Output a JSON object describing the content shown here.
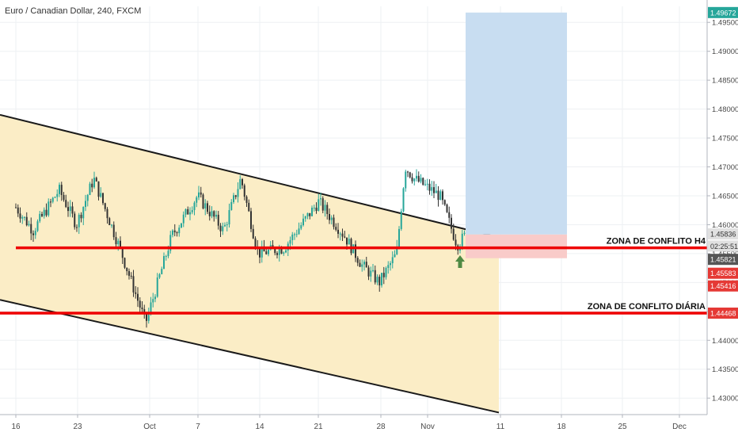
{
  "header": {
    "title": "Euro / Canadian Dollar, 240, FXCM"
  },
  "chart_data": {
    "type": "candlestick",
    "title": "Euro / Canadian Dollar, 240, FXCM",
    "timeframe": "240",
    "source": "FXCM",
    "ylim": [
      1.4255,
      1.4975
    ],
    "y_ticks": [
      "1.49500",
      "1.49000",
      "1.48500",
      "1.48000",
      "1.47500",
      "1.47000",
      "1.46500",
      "1.46000",
      "1.45500",
      "1.45000",
      "1.44500",
      "1.44000",
      "1.43500",
      "1.43000"
    ],
    "x_ticks": [
      "16",
      "23",
      "Oct",
      "7",
      "14",
      "21",
      "28",
      "Nov",
      "11",
      "18",
      "25",
      "Dec"
    ],
    "price_path": [
      [
        "16",
        1.463
      ],
      [
        "18",
        1.459
      ],
      [
        "21",
        1.466
      ],
      [
        "23",
        1.46
      ],
      [
        "25",
        1.468
      ],
      [
        "28",
        1.456
      ],
      [
        "Oct",
        1.443
      ],
      [
        "4",
        1.458
      ],
      [
        "7",
        1.465
      ],
      [
        "10",
        1.459
      ],
      [
        "12",
        1.468
      ],
      [
        "14",
        1.455
      ],
      [
        "17",
        1.456
      ],
      [
        "21",
        1.464
      ],
      [
        "24",
        1.458
      ],
      [
        "26",
        1.453
      ],
      [
        "28",
        1.45
      ],
      [
        "30",
        1.455
      ],
      [
        "31",
        1.47
      ],
      [
        "Nov",
        1.468
      ],
      [
        "4",
        1.465
      ],
      [
        "6",
        1.4565
      ],
      [
        "7",
        1.4583
      ]
    ],
    "channel": {
      "upper_line": [
        [
          "16",
          1.479
        ],
        [
          "11",
          1.4578
        ]
      ],
      "lower_line": [
        [
          "16",
          1.447
        ],
        [
          "11",
          1.4275
        ]
      ]
    },
    "horizontal_levels": [
      {
        "label": "ZONA DE CONFLITO H4",
        "price": 1.456
      },
      {
        "label": "ZONA DE CONFLITO DIÁRIA",
        "price": 1.4447
      }
    ],
    "position": {
      "type": "long",
      "entry": 1.4583,
      "target": 1.4967,
      "stop": 1.4542
    },
    "price_badges": [
      {
        "text": "1.49672",
        "color": "#26a69a",
        "price": 1.4967
      },
      {
        "text": "1.45836",
        "color": "#e0e0e0",
        "price": 1.4584
      },
      {
        "text": "02:25:51",
        "color": "#e0e0e0",
        "price": 1.4563
      },
      {
        "text": "1.45821",
        "color": "#555555",
        "price": 1.454
      },
      {
        "text": "1.45583",
        "color": "#e53935",
        "price": 1.4516
      },
      {
        "text": "1.45416",
        "color": "#e53935",
        "price": 1.4494
      },
      {
        "text": "1.44468",
        "color": "#e53935",
        "price": 1.4447
      }
    ],
    "grid": true,
    "colors": {
      "bull": "#26a69a",
      "bear": "#333333",
      "channel_fill": "#fbedc6",
      "level_line": "#ee0000",
      "target_fill": "#c8ddf1",
      "stop_fill": "#f9cbc9",
      "arrow": "#4f8a44"
    }
  }
}
